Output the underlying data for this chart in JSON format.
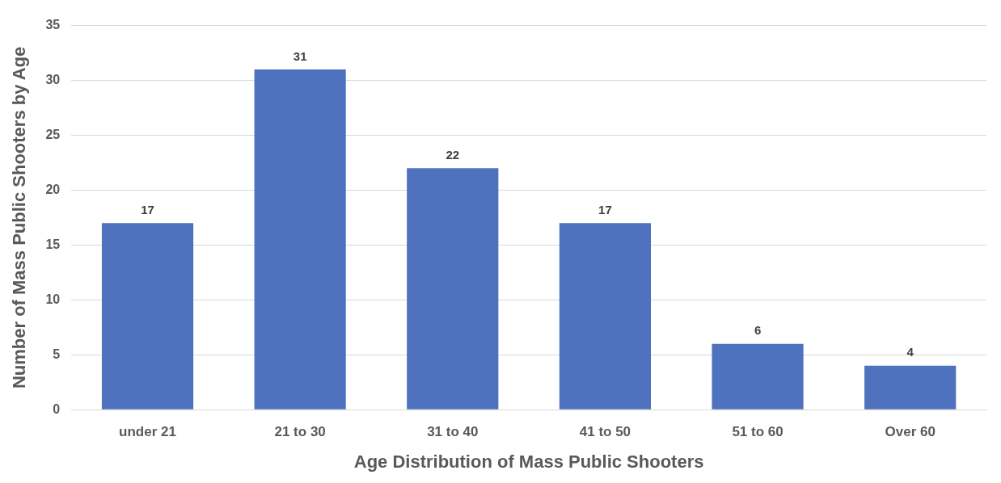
{
  "chart_data": {
    "type": "bar",
    "xlabel": "Age Distribution of Mass Public Shooters",
    "ylabel": "Number of Mass Public Shooters by Age",
    "categories": [
      "under 21",
      "21 to 30",
      "31 to 40",
      "41 to 50",
      "51 to 60",
      "Over 60"
    ],
    "values": [
      17,
      31,
      22,
      17,
      6,
      4
    ],
    "color": "#4e72be",
    "ylim": [
      0,
      35
    ],
    "yticks": [
      0,
      5,
      10,
      15,
      20,
      25,
      30,
      35
    ],
    "grid": "y",
    "data_labels": true,
    "legend": false
  }
}
